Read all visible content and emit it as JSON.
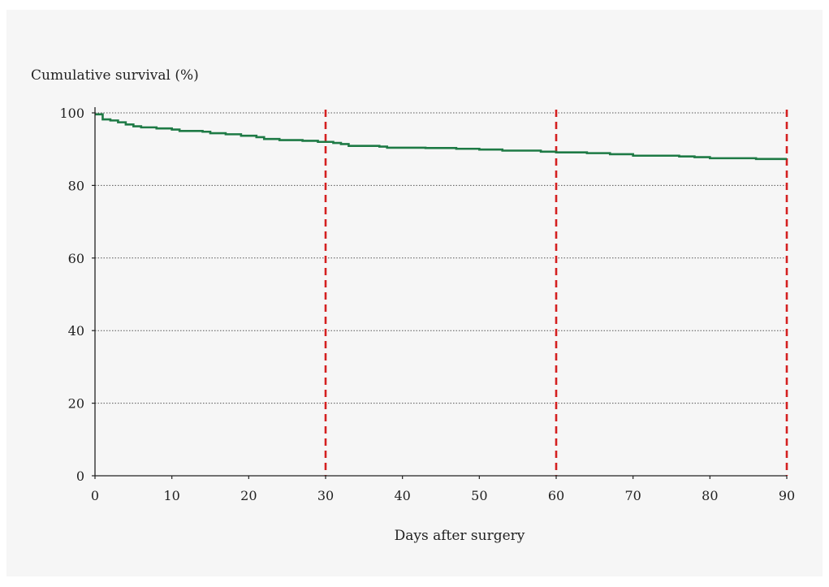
{
  "chart_data": {
    "type": "line",
    "title": "",
    "ylabel": "Cumulative survival (%)",
    "xlabel": "Days after surgery",
    "xlim": [
      0,
      90
    ],
    "ylim": [
      0,
      100
    ],
    "x_ticks": [
      "0",
      "10",
      "20",
      "30",
      "40",
      "50",
      "60",
      "70",
      "80",
      "90"
    ],
    "y_ticks": [
      "0",
      "20",
      "40",
      "60",
      "80",
      "100"
    ],
    "grid": "horizontal dotted",
    "legend": "none",
    "series": [
      {
        "color": "#1e7a45",
        "step": true,
        "points": [
          [
            0,
            99.6
          ],
          [
            1,
            98.2
          ],
          [
            2,
            97.9
          ],
          [
            3,
            97.4
          ],
          [
            4,
            96.8
          ],
          [
            5,
            96.3
          ],
          [
            6,
            96.0
          ],
          [
            8,
            95.7
          ],
          [
            10,
            95.4
          ],
          [
            11,
            95.0
          ],
          [
            14,
            94.8
          ],
          [
            15,
            94.4
          ],
          [
            17,
            94.1
          ],
          [
            19,
            93.7
          ],
          [
            21,
            93.3
          ],
          [
            22,
            92.8
          ],
          [
            24,
            92.5
          ],
          [
            27,
            92.3
          ],
          [
            29,
            92.0
          ],
          [
            31,
            91.7
          ],
          [
            32,
            91.4
          ],
          [
            33,
            90.9
          ],
          [
            37,
            90.7
          ],
          [
            38,
            90.4
          ],
          [
            43,
            90.3
          ],
          [
            47,
            90.1
          ],
          [
            50,
            89.9
          ],
          [
            53,
            89.6
          ],
          [
            58,
            89.3
          ],
          [
            60,
            89.1
          ],
          [
            64,
            88.9
          ],
          [
            67,
            88.6
          ],
          [
            70,
            88.2
          ],
          [
            76,
            88.0
          ],
          [
            78,
            87.8
          ],
          [
            80,
            87.5
          ],
          [
            86,
            87.3
          ],
          [
            90,
            87.3
          ]
        ]
      }
    ],
    "reference_lines": {
      "x": [
        30,
        60,
        90
      ],
      "color": "#d42020",
      "style": "dashed"
    }
  }
}
